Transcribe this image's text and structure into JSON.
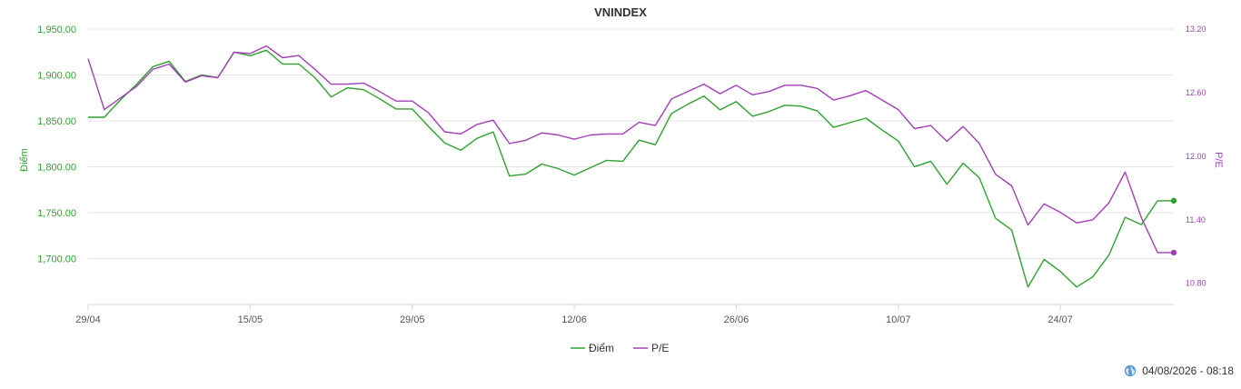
{
  "chart_data": {
    "type": "line",
    "title": "VNINDEX",
    "y_left_label": "Điểm",
    "y_right_label": "P/E",
    "y_left_ticks": [
      "1,950.00",
      "1,900.00",
      "1,850.00",
      "1,800.00",
      "1,750.00",
      "1,700.00"
    ],
    "y_left_tick_values": [
      1950,
      1900,
      1850,
      1800,
      1750,
      1700
    ],
    "y_right_ticks": [
      "13.20",
      "12.60",
      "12.00",
      "11.40",
      "10.80"
    ],
    "y_right_tick_values": [
      13.2,
      12.6,
      12.0,
      11.4,
      10.8
    ],
    "y_left_range": [
      1650,
      1950
    ],
    "y_right_range": [
      10.6,
      13.2
    ],
    "x_ticks": [
      "29/04",
      "15/05",
      "29/05",
      "12/06",
      "26/06",
      "10/07",
      "24/07"
    ],
    "x_tick_positions": [
      0,
      10,
      20,
      30,
      40,
      50,
      60
    ],
    "legend_position": "bottom-center",
    "grid": true,
    "series": [
      {
        "name": "Điểm",
        "axis": "left",
        "color": "#2ea12e",
        "values": [
          1854,
          1854,
          1873,
          1890,
          1909,
          1915,
          1893,
          1900,
          1897,
          1925,
          1921,
          1927,
          1912,
          1912,
          1897,
          1876,
          1886,
          1884,
          1874,
          1863,
          1863,
          1844,
          1826,
          1818,
          1831,
          1838,
          1790,
          1792,
          1803,
          1798,
          1791,
          1799,
          1807,
          1806,
          1829,
          1824,
          1858,
          1868,
          1877,
          1862,
          1871,
          1855,
          1860,
          1867,
          1866,
          1861,
          1843,
          1848,
          1853,
          1840,
          1828,
          1800,
          1806,
          1781,
          1804,
          1788,
          1744,
          1731,
          1669,
          1699,
          1686,
          1669,
          1680,
          1704,
          1745,
          1737,
          1763,
          1763
        ]
      },
      {
        "name": "P/E",
        "axis": "right",
        "color": "#a13fb5",
        "values": [
          12.92,
          12.44,
          12.55,
          12.66,
          12.82,
          12.87,
          12.7,
          12.76,
          12.74,
          12.98,
          12.97,
          13.04,
          12.93,
          12.95,
          12.82,
          12.68,
          12.68,
          12.69,
          12.61,
          12.52,
          12.52,
          12.41,
          12.23,
          12.21,
          12.3,
          12.34,
          12.12,
          12.15,
          12.22,
          12.2,
          12.16,
          12.2,
          12.21,
          12.21,
          12.32,
          12.29,
          12.54,
          12.61,
          12.68,
          12.59,
          12.67,
          12.58,
          12.61,
          12.67,
          12.67,
          12.64,
          12.53,
          12.57,
          12.62,
          12.53,
          12.44,
          12.26,
          12.29,
          12.14,
          12.28,
          12.12,
          11.83,
          11.72,
          11.35,
          11.55,
          11.47,
          11.37,
          11.4,
          11.56,
          11.85,
          11.42,
          11.09,
          11.09
        ]
      }
    ]
  },
  "footer": {
    "timestamp": "04/08/2026 - 08:18",
    "icon": "globe-icon"
  }
}
